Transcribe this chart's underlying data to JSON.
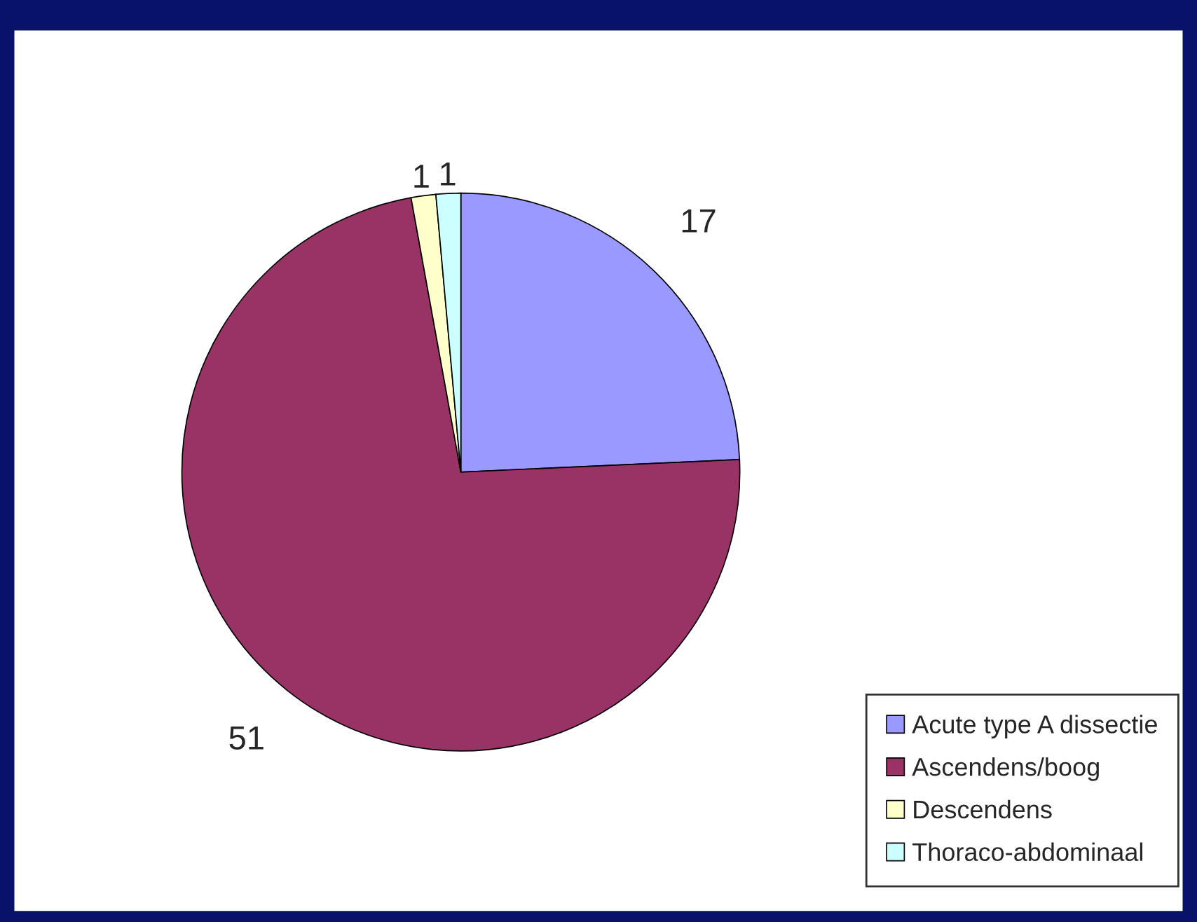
{
  "chart_data": {
    "type": "pie",
    "categories": [
      "Acute type A dissectie",
      "Ascendens/boog",
      "Descendens",
      "Thoraco-abdominaal"
    ],
    "values": [
      17,
      51,
      1,
      1
    ],
    "colors": [
      "#9999ff",
      "#993366",
      "#ffffcc",
      "#ccffff"
    ],
    "data_labels": true,
    "legend": "bottom right"
  }
}
